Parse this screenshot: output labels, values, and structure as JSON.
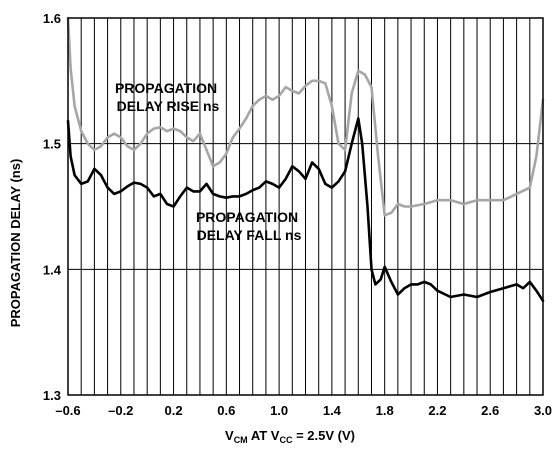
{
  "chart_data": {
    "type": "line",
    "title": "",
    "xlabel_parts": {
      "v1": "V",
      "v1_sub": "CM",
      "mid": " AT V",
      "v2_sub": "CC",
      "tail": " = 2.5V (V)"
    },
    "ylabel": "PROPAGATION DELAY (ns)",
    "xlim": [
      -0.6,
      3.0
    ],
    "ylim": [
      1.3,
      1.6
    ],
    "x_ticks": [
      "-0.6",
      "-0.2",
      "0.2",
      "0.6",
      "1.0",
      "1.4",
      "1.8",
      "2.2",
      "2.6",
      "3.0"
    ],
    "x_tick_values": [
      -0.6,
      -0.2,
      0.2,
      0.6,
      1.0,
      1.4,
      1.8,
      2.2,
      2.6,
      3.0
    ],
    "y_ticks": [
      "1.3",
      "1.4",
      "1.5",
      "1.6"
    ],
    "y_tick_values": [
      1.3,
      1.4,
      1.5,
      1.6
    ],
    "vertical_grid_step": 0.1,
    "grid": true,
    "series": [
      {
        "name": "PROPAGATION DELAY RISE ns",
        "label_lines": [
          "PROPAGATION",
          "DELAY RISE ns"
        ],
        "color": "#a6a6a6",
        "points": [
          [
            -0.6,
            1.6
          ],
          [
            -0.58,
            1.56
          ],
          [
            -0.55,
            1.53
          ],
          [
            -0.5,
            1.51
          ],
          [
            -0.45,
            1.5
          ],
          [
            -0.4,
            1.495
          ],
          [
            -0.35,
            1.498
          ],
          [
            -0.3,
            1.505
          ],
          [
            -0.25,
            1.508
          ],
          [
            -0.2,
            1.505
          ],
          [
            -0.15,
            1.498
          ],
          [
            -0.1,
            1.495
          ],
          [
            -0.05,
            1.5
          ],
          [
            0.0,
            1.508
          ],
          [
            0.05,
            1.512
          ],
          [
            0.1,
            1.513
          ],
          [
            0.15,
            1.51
          ],
          [
            0.2,
            1.512
          ],
          [
            0.25,
            1.51
          ],
          [
            0.3,
            1.505
          ],
          [
            0.35,
            1.502
          ],
          [
            0.4,
            1.508
          ],
          [
            0.45,
            1.495
          ],
          [
            0.5,
            1.482
          ],
          [
            0.55,
            1.485
          ],
          [
            0.6,
            1.492
          ],
          [
            0.65,
            1.505
          ],
          [
            0.7,
            1.512
          ],
          [
            0.75,
            1.52
          ],
          [
            0.8,
            1.53
          ],
          [
            0.85,
            1.535
          ],
          [
            0.9,
            1.538
          ],
          [
            0.95,
            1.535
          ],
          [
            1.0,
            1.538
          ],
          [
            1.05,
            1.545
          ],
          [
            1.1,
            1.542
          ],
          [
            1.15,
            1.54
          ],
          [
            1.2,
            1.546
          ],
          [
            1.25,
            1.55
          ],
          [
            1.3,
            1.55
          ],
          [
            1.35,
            1.548
          ],
          [
            1.4,
            1.53
          ],
          [
            1.45,
            1.5
          ],
          [
            1.5,
            1.495
          ],
          [
            1.55,
            1.54
          ],
          [
            1.6,
            1.558
          ],
          [
            1.65,
            1.555
          ],
          [
            1.7,
            1.545
          ],
          [
            1.75,
            1.49
          ],
          [
            1.8,
            1.443
          ],
          [
            1.85,
            1.445
          ],
          [
            1.9,
            1.452
          ],
          [
            1.95,
            1.45
          ],
          [
            2.0,
            1.45
          ],
          [
            2.1,
            1.452
          ],
          [
            2.2,
            1.455
          ],
          [
            2.3,
            1.455
          ],
          [
            2.4,
            1.452
          ],
          [
            2.5,
            1.455
          ],
          [
            2.6,
            1.455
          ],
          [
            2.7,
            1.455
          ],
          [
            2.8,
            1.46
          ],
          [
            2.9,
            1.465
          ],
          [
            2.95,
            1.49
          ],
          [
            3.0,
            1.535
          ]
        ]
      },
      {
        "name": "PROPAGATION DELAY FALL ns",
        "label_lines": [
          "PROPAGATION",
          "DELAY FALL ns"
        ],
        "color": "#000000",
        "points": [
          [
            -0.6,
            1.518
          ],
          [
            -0.58,
            1.49
          ],
          [
            -0.55,
            1.475
          ],
          [
            -0.5,
            1.468
          ],
          [
            -0.45,
            1.47
          ],
          [
            -0.4,
            1.48
          ],
          [
            -0.35,
            1.475
          ],
          [
            -0.3,
            1.465
          ],
          [
            -0.25,
            1.46
          ],
          [
            -0.2,
            1.462
          ],
          [
            -0.15,
            1.466
          ],
          [
            -0.1,
            1.469
          ],
          [
            -0.05,
            1.468
          ],
          [
            0.0,
            1.465
          ],
          [
            0.05,
            1.458
          ],
          [
            0.1,
            1.46
          ],
          [
            0.15,
            1.452
          ],
          [
            0.2,
            1.45
          ],
          [
            0.25,
            1.458
          ],
          [
            0.3,
            1.465
          ],
          [
            0.35,
            1.462
          ],
          [
            0.4,
            1.462
          ],
          [
            0.45,
            1.468
          ],
          [
            0.5,
            1.46
          ],
          [
            0.55,
            1.458
          ],
          [
            0.6,
            1.457
          ],
          [
            0.65,
            1.458
          ],
          [
            0.7,
            1.458
          ],
          [
            0.75,
            1.46
          ],
          [
            0.8,
            1.463
          ],
          [
            0.85,
            1.465
          ],
          [
            0.9,
            1.47
          ],
          [
            0.95,
            1.468
          ],
          [
            1.0,
            1.465
          ],
          [
            1.05,
            1.472
          ],
          [
            1.1,
            1.482
          ],
          [
            1.15,
            1.478
          ],
          [
            1.2,
            1.472
          ],
          [
            1.25,
            1.485
          ],
          [
            1.3,
            1.48
          ],
          [
            1.35,
            1.468
          ],
          [
            1.4,
            1.465
          ],
          [
            1.45,
            1.47
          ],
          [
            1.5,
            1.478
          ],
          [
            1.55,
            1.5
          ],
          [
            1.6,
            1.52
          ],
          [
            1.63,
            1.5
          ],
          [
            1.67,
            1.45
          ],
          [
            1.7,
            1.4
          ],
          [
            1.73,
            1.388
          ],
          [
            1.77,
            1.392
          ],
          [
            1.8,
            1.402
          ],
          [
            1.85,
            1.39
          ],
          [
            1.9,
            1.38
          ],
          [
            1.95,
            1.385
          ],
          [
            2.0,
            1.388
          ],
          [
            2.05,
            1.388
          ],
          [
            2.1,
            1.39
          ],
          [
            2.15,
            1.388
          ],
          [
            2.2,
            1.383
          ],
          [
            2.3,
            1.378
          ],
          [
            2.4,
            1.38
          ],
          [
            2.5,
            1.378
          ],
          [
            2.6,
            1.382
          ],
          [
            2.7,
            1.385
          ],
          [
            2.8,
            1.388
          ],
          [
            2.85,
            1.385
          ],
          [
            2.9,
            1.39
          ],
          [
            2.95,
            1.383
          ],
          [
            3.0,
            1.375
          ]
        ]
      }
    ]
  }
}
